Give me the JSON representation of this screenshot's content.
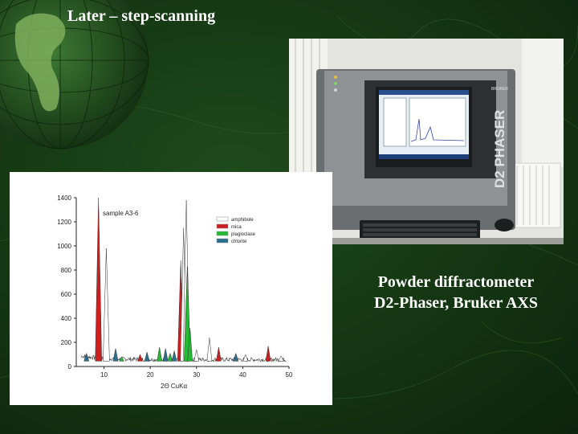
{
  "slide": {
    "title": "Later – step-scanning",
    "caption_line1": "Powder diffractometer",
    "caption_line2": "D2-Phaser, Bruker AXS"
  },
  "photo": {
    "instrument_label": "D2 PHASER",
    "brand_label": "BRUKER"
  },
  "colors": {
    "background": "#163a14",
    "amphibole": "#ffffff",
    "mica": "#cc1f1f",
    "plagioclase": "#22bb33",
    "chlorite": "#2a6f8f",
    "baseline": "#333333"
  },
  "chart_data": {
    "type": "line",
    "annotation": "sample A3-6",
    "xlabel": "2Θ CuKα",
    "ylabel": "",
    "xlim": [
      4,
      50
    ],
    "ylim": [
      0,
      1400
    ],
    "xticks": [
      "10",
      "20",
      "30",
      "40",
      "50"
    ],
    "yticks": [
      "0",
      "200",
      "400",
      "600",
      "800",
      "1000",
      "1200",
      "1400"
    ],
    "legend_position": "top-right",
    "legend": [
      "amphibole",
      "mica",
      "plagioclase",
      "chlorite"
    ],
    "peaks": [
      {
        "x": 6.2,
        "y": 110,
        "mineral": "chlorite"
      },
      {
        "x": 8.8,
        "y": 1400,
        "mineral": "mica"
      },
      {
        "x": 10.5,
        "y": 980,
        "mineral": "amphibole"
      },
      {
        "x": 12.5,
        "y": 150,
        "mineral": "chlorite"
      },
      {
        "x": 13.8,
        "y": 80,
        "mineral": "plagioclase"
      },
      {
        "x": 17.8,
        "y": 100,
        "mineral": "mica"
      },
      {
        "x": 19.3,
        "y": 120,
        "mineral": "chlorite"
      },
      {
        "x": 22.0,
        "y": 160,
        "mineral": "plagioclase"
      },
      {
        "x": 23.3,
        "y": 150,
        "mineral": "chlorite"
      },
      {
        "x": 24.3,
        "y": 110,
        "mineral": "plagioclase"
      },
      {
        "x": 25.2,
        "y": 130,
        "mineral": "chlorite"
      },
      {
        "x": 26.6,
        "y": 880,
        "mineral": "mica"
      },
      {
        "x": 27.2,
        "y": 1150,
        "mineral": "amphibole"
      },
      {
        "x": 27.8,
        "y": 1380,
        "mineral": "amphibole"
      },
      {
        "x": 28.0,
        "y": 830,
        "mineral": "plagioclase"
      },
      {
        "x": 28.6,
        "y": 320,
        "mineral": "plagioclase"
      },
      {
        "x": 30.0,
        "y": 140,
        "mineral": "amphibole"
      },
      {
        "x": 32.8,
        "y": 240,
        "mineral": "amphibole"
      },
      {
        "x": 34.8,
        "y": 160,
        "mineral": "mica"
      },
      {
        "x": 38.5,
        "y": 110,
        "mineral": "chlorite"
      },
      {
        "x": 40.6,
        "y": 100,
        "mineral": "amphibole"
      },
      {
        "x": 45.5,
        "y": 170,
        "mineral": "mica"
      },
      {
        "x": 48.3,
        "y": 90,
        "mineral": "amphibole"
      }
    ]
  }
}
